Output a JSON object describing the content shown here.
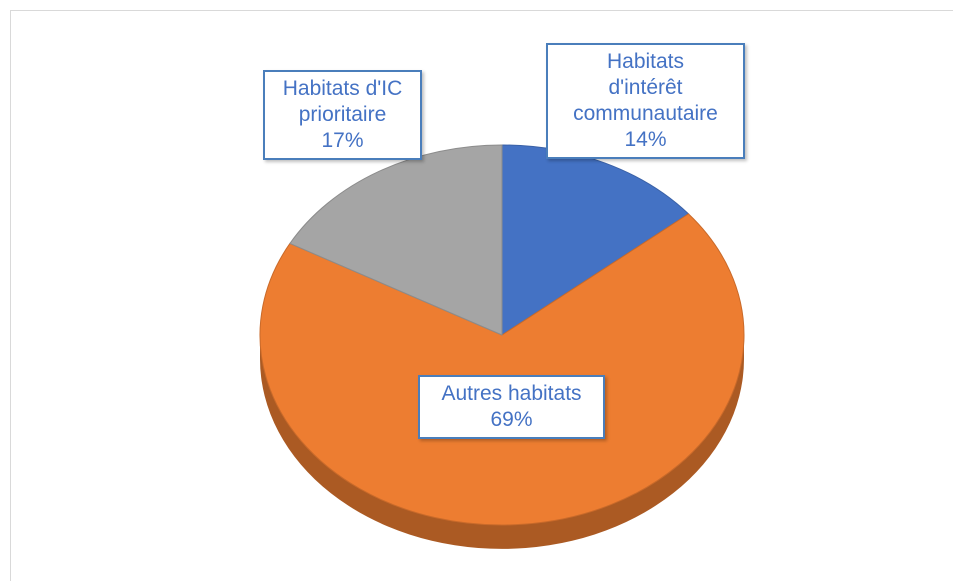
{
  "chart_data": {
    "type": "pie3d",
    "categories": [
      "Habitats d'intérêt communautaire",
      "Autres habitats",
      "Habitats d'IC prioritaire"
    ],
    "values": [
      14,
      69,
      17
    ],
    "value_labels": [
      "14%",
      "69%",
      "17%"
    ],
    "colors": [
      "#4472c4",
      "#ed7d31",
      "#a5a5a5"
    ]
  }
}
